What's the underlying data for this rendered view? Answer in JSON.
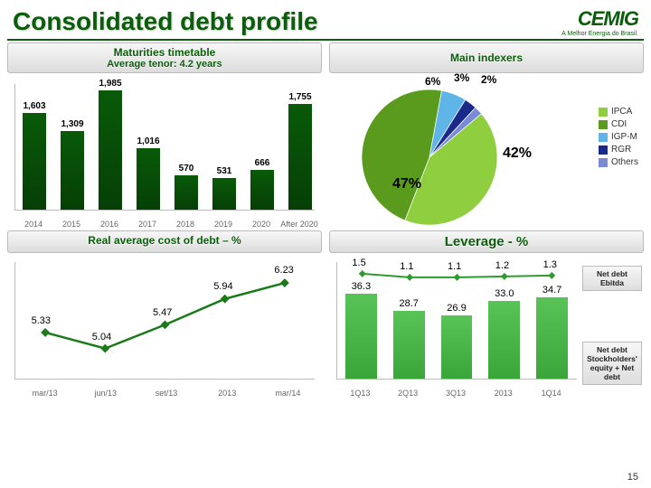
{
  "title": "Consolidated debt profile",
  "logo": {
    "main": "CEMIG",
    "sub": "A Melhor Energia do Brasil."
  },
  "page_number": "15",
  "maturities": {
    "title_l1": "Maturities timetable",
    "title_l2": "Average tenor: 4.2 years",
    "categories": [
      "2014",
      "2015",
      "2016",
      "2017",
      "2018",
      "2019",
      "2020",
      "After 2020"
    ],
    "values": [
      1603,
      1309,
      1985,
      1016,
      570,
      531,
      666,
      1755
    ],
    "bar_color": "#095a09",
    "ymax": 2100
  },
  "indexers": {
    "title": "Main indexers",
    "slices": [
      {
        "label": "IPCA",
        "value": 42,
        "color": "#8fce3f"
      },
      {
        "label": "CDI",
        "value": 47,
        "color": "#5a9b1e"
      },
      {
        "label": "IGP-M",
        "value": 6,
        "color": "#5fb5e8"
      },
      {
        "label": "RGR",
        "value": 3,
        "color": "#1a2a8a"
      },
      {
        "label": "Others",
        "value": 2,
        "color": "#7a8bd6"
      }
    ],
    "callouts": [
      "6%",
      "3%",
      "2%",
      "42%",
      "47%"
    ]
  },
  "cost": {
    "title": "Real average cost of debt – %",
    "categories": [
      "mar/13",
      "jun/13",
      "set/13",
      "2013",
      "mar/14"
    ],
    "values": [
      5.33,
      5.04,
      5.47,
      5.94,
      6.23
    ],
    "ymin": 4.5,
    "ymax": 6.6,
    "line_color": "#1a7a1a"
  },
  "leverage": {
    "title": "Leverage - %",
    "categories": [
      "1Q13",
      "2Q13",
      "3Q13",
      "2013",
      "1Q14"
    ],
    "bars": [
      36.3,
      28.7,
      26.9,
      33.0,
      34.7
    ],
    "line": [
      1.5,
      1.1,
      1.1,
      1.2,
      1.3
    ],
    "bar_ymax": 40,
    "line_ymax": 2.0,
    "bar_color": "#3aa63a",
    "line_color": "#2f9b2f",
    "legend_top": "Net debt Ebitda",
    "legend_bottom": "Net debt Stockholders' equity + Net debt"
  }
}
